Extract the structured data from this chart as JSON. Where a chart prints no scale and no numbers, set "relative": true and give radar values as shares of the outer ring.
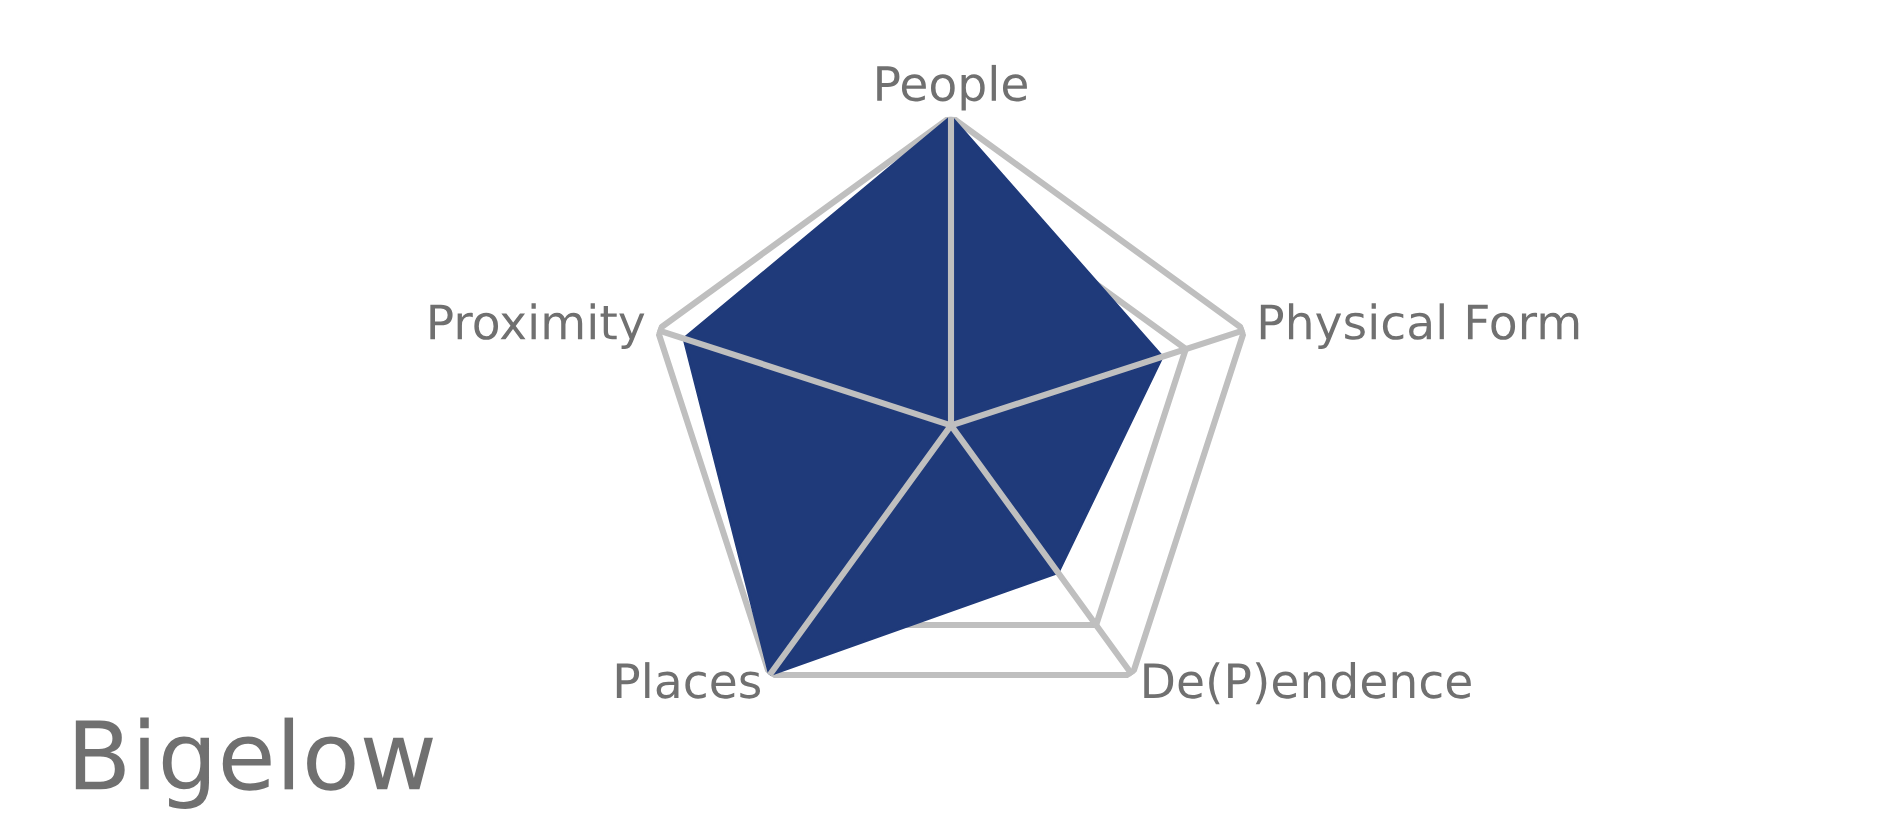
{
  "chart_data": {
    "type": "radar",
    "title": "Bigelow",
    "categories": [
      "People",
      "Physical Form",
      "De(P)endence",
      "Places",
      "Proximity"
    ],
    "relative": true,
    "grid": true,
    "series": [
      {
        "color": "#1f3a7a",
        "values": [
          1.0,
          0.72,
          0.59,
          1.0,
          0.91
        ]
      }
    ]
  }
}
